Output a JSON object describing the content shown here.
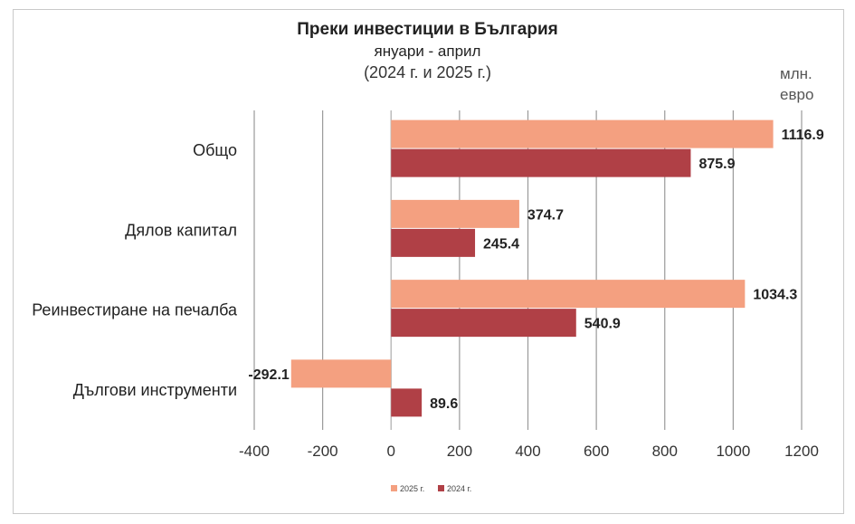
{
  "chart_data": {
    "type": "bar",
    "orientation": "horizontal",
    "title": "Преки инвестиции в България",
    "subtitle": "януари - април",
    "period": "(2024 г. и 2025 г.)",
    "unit_line1": "млн.",
    "unit_line2": "евро",
    "categories": [
      "Общо",
      "Дялов капитал",
      "Реинвестиране на печалба",
      "Дългови инструменти"
    ],
    "series": [
      {
        "name": "2025 г.",
        "color": "#f4a080",
        "values": [
          1116.9,
          374.7,
          1034.3,
          -292.1
        ]
      },
      {
        "name": "2024 г.",
        "color": "#b04046",
        "values": [
          875.9,
          245.4,
          540.9,
          89.6
        ]
      }
    ],
    "value_labels": [
      [
        "1116.9",
        "374.7",
        "1034.3",
        "-292.1"
      ],
      [
        "875.9",
        "245.4",
        "540.9",
        "89.6"
      ]
    ],
    "xlim": [
      -400,
      1200
    ],
    "xticks": [
      -400,
      -200,
      0,
      200,
      400,
      600,
      800,
      1000,
      1200
    ],
    "xtick_labels": [
      "-400",
      "-200",
      "0",
      "200",
      "400",
      "600",
      "800",
      "1000",
      "1200"
    ],
    "grid": "vertical",
    "legend": "bottom"
  }
}
